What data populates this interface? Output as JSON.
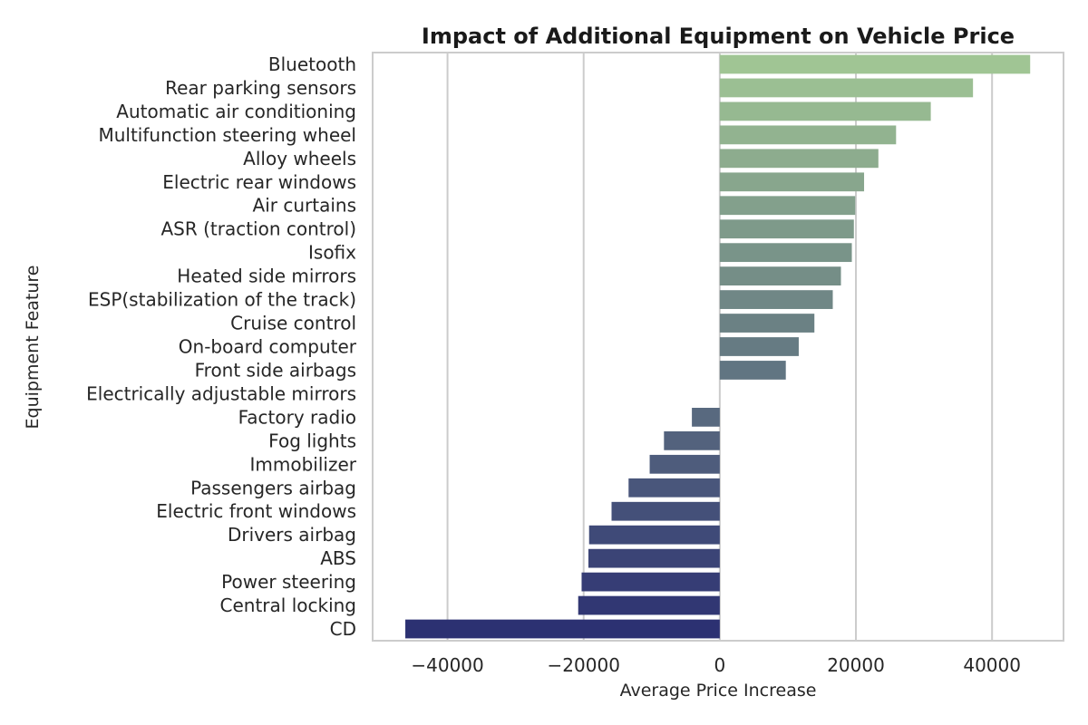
{
  "chart_data": {
    "type": "bar",
    "orientation": "horizontal",
    "title": "Impact of Additional Equipment on Vehicle Price",
    "xlabel": "Average Price Increase",
    "ylabel": "Equipment Feature",
    "xlim": [
      -51000,
      50500
    ],
    "xticks": [
      -40000,
      -20000,
      0,
      20000,
      40000
    ],
    "xtick_labels": [
      "−40000",
      "−20000",
      "0",
      "20000",
      "40000"
    ],
    "grid": true,
    "palette": "crest",
    "color_start": "#a0c594",
    "color_end": "#2c3172",
    "categories": [
      "Bluetooth",
      "Rear parking sensors",
      "Automatic air conditioning",
      "Multifunction steering wheel",
      "Alloy wheels",
      "Electric rear windows",
      "Air curtains",
      "ASR (traction control)",
      "Isofix",
      "Heated side mirrors",
      "ESP(stabilization of the track)",
      "Cruise control",
      "On-board computer",
      "Front side airbags",
      "Electrically adjustable mirrors",
      "Factory radio",
      "Fog lights",
      "Immobilizer",
      "Passengers airbag",
      "Electric front windows",
      "Drivers airbag",
      "ABS",
      "Power steering",
      "Central locking",
      "CD"
    ],
    "values": [
      45600,
      37200,
      31000,
      25900,
      23300,
      21200,
      19900,
      19700,
      19400,
      17800,
      16600,
      13900,
      11600,
      9700,
      0,
      -4100,
      -8200,
      -10300,
      -13400,
      -15900,
      -19200,
      -19300,
      -20300,
      -20800,
      -46200
    ]
  }
}
